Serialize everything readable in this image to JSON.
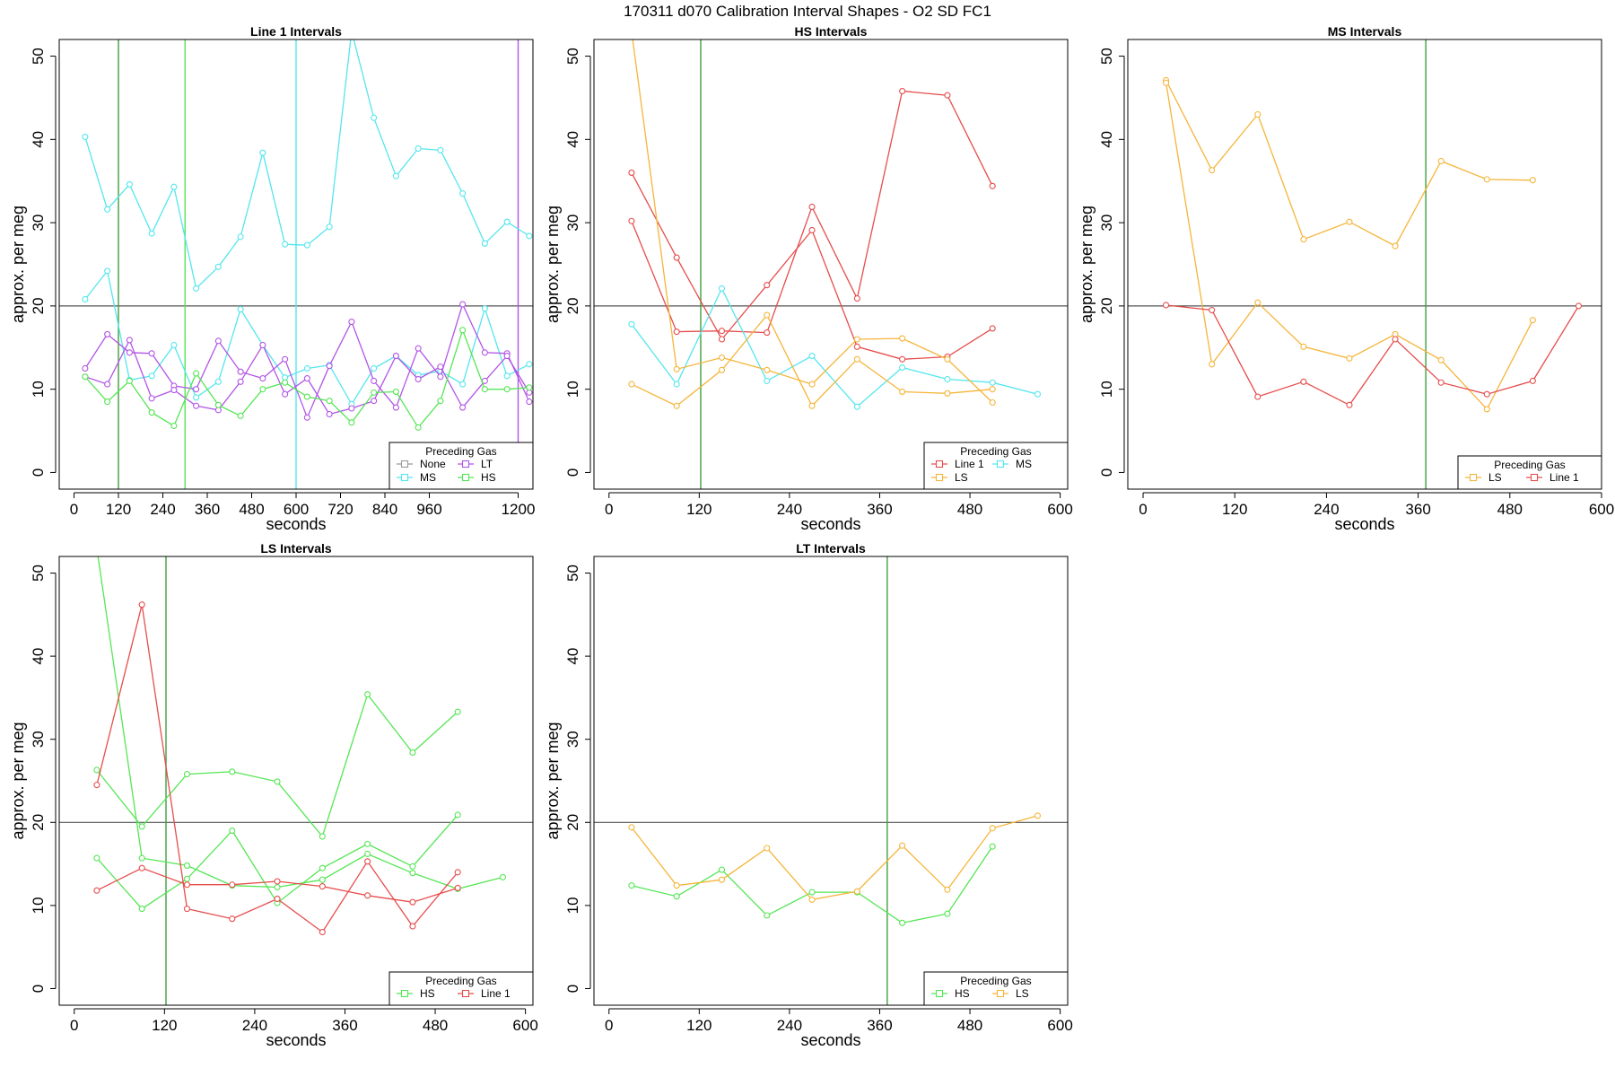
{
  "figure": {
    "supertitle": "170311    d070    Calibration Interval Shapes - O2 SD FC1",
    "colors": {
      "None": "#999999",
      "MS": "#55e6ee",
      "LT": "#b355e6",
      "HS": "#55e655",
      "Line 1": "#e64d4d",
      "LS": "#f5b53a",
      "ref": "#555555",
      "vline": "#3f9f3f"
    }
  },
  "chart_data": [
    {
      "type": "line",
      "title": "Line 1 Intervals",
      "xlabel": "seconds",
      "ylabel": "approx. per meg",
      "xlim": [
        -40,
        1240
      ],
      "ylim": [
        -2,
        52
      ],
      "xticks": [
        0,
        120,
        240,
        360,
        480,
        600,
        720,
        840,
        960,
        1200
      ],
      "yticks": [
        0,
        10,
        20,
        30,
        40,
        50
      ],
      "hline": 20,
      "vlines": [
        {
          "x": 120,
          "color": "#3f9f3f"
        },
        {
          "x": 300,
          "color": "#55e655"
        },
        {
          "x": 600,
          "color": "#55e6ee"
        },
        {
          "x": 1200,
          "color": "#b355e6"
        }
      ],
      "legend": {
        "title": "Preceding Gas",
        "position": "bottom-right",
        "columns": 2,
        "entries": [
          "None",
          "LT",
          "MS",
          "HS"
        ]
      },
      "series": [
        {
          "name": "MS",
          "x": [
            30,
            90,
            150,
            210,
            270,
            330,
            390,
            450,
            510,
            570,
            630,
            690,
            750,
            810,
            870,
            930,
            990,
            1050,
            1110,
            1170,
            1230
          ],
          "y": [
            40.3,
            31.6,
            34.6,
            28.7,
            34.3,
            22.1,
            24.7,
            28.3,
            38.4,
            27.4,
            27.3,
            29.5,
            53.0,
            42.6,
            35.6,
            38.9,
            38.7,
            33.5,
            27.5,
            30.1,
            28.4
          ]
        },
        {
          "name": "MS",
          "x": [
            30,
            90,
            150,
            210,
            270,
            330,
            390,
            450,
            510,
            570,
            630,
            690,
            750,
            810,
            870,
            930,
            990,
            1050,
            1110,
            1170,
            1230
          ],
          "y": [
            20.8,
            24.2,
            11.1,
            11.6,
            15.3,
            9.0,
            10.9,
            19.6,
            15.3,
            11.4,
            12.5,
            12.9,
            8.2,
            12.5,
            14.0,
            11.7,
            12.2,
            10.6,
            19.7,
            11.6,
            13.0
          ]
        },
        {
          "name": "LT",
          "x": [
            30,
            90,
            150,
            210,
            270,
            330,
            390,
            450,
            510,
            570,
            630,
            690,
            750,
            810,
            870,
            930,
            990,
            1050,
            1110,
            1170,
            1230
          ],
          "y": [
            12.5,
            16.6,
            14.4,
            14.3,
            10.4,
            10.0,
            15.8,
            12.1,
            11.3,
            13.6,
            6.6,
            12.8,
            18.1,
            11.0,
            7.8,
            14.9,
            11.5,
            20.2,
            14.4,
            14.3,
            8.5
          ]
        },
        {
          "name": "LT",
          "x": [
            30,
            90,
            150,
            210,
            270,
            330,
            390,
            450,
            510,
            570,
            630,
            690,
            750,
            810,
            870,
            930,
            990,
            1050,
            1110,
            1170,
            1230
          ],
          "y": [
            11.5,
            10.6,
            15.9,
            8.9,
            9.9,
            8.0,
            7.5,
            10.9,
            15.3,
            9.4,
            11.3,
            7.0,
            7.7,
            8.6,
            14.0,
            11.2,
            12.7,
            7.8,
            11.0,
            14.0,
            9.6
          ]
        },
        {
          "name": "HS",
          "x": [
            30,
            90,
            150,
            210,
            270,
            330,
            390,
            450,
            510,
            570,
            630,
            690,
            750,
            810,
            870,
            930,
            990,
            1050,
            1110,
            1170,
            1230
          ],
          "y": [
            11.5,
            8.5,
            11.0,
            7.2,
            5.6,
            11.9,
            8.1,
            6.8,
            10.0,
            10.8,
            9.1,
            8.6,
            6.0,
            9.6,
            9.7,
            5.4,
            8.6,
            17.1,
            10.0,
            10.0,
            10.2
          ]
        }
      ]
    },
    {
      "type": "line",
      "title": "HS Intervals",
      "xlabel": "seconds",
      "ylabel": "approx. per meg",
      "xlim": [
        -20,
        610
      ],
      "ylim": [
        -2,
        52
      ],
      "xticks": [
        0,
        120,
        240,
        360,
        480,
        600
      ],
      "yticks": [
        0,
        10,
        20,
        30,
        40,
        50
      ],
      "hline": 20,
      "vlines": [
        {
          "x": 122,
          "color": "#3f9f3f"
        }
      ],
      "legend": {
        "title": "Preceding Gas",
        "position": "bottom-right",
        "columns": 2,
        "entries": [
          "Line 1",
          "MS",
          "LS"
        ]
      },
      "series": [
        {
          "name": "Line 1",
          "x": [
            30,
            90,
            150,
            210,
            270,
            330,
            390,
            450,
            510
          ],
          "y": [
            36.0,
            25.8,
            16.0,
            22.5,
            29.1,
            15.1,
            13.6,
            13.9,
            17.3
          ]
        },
        {
          "name": "Line 1",
          "x": [
            30,
            90,
            150,
            210,
            270,
            330,
            390,
            450,
            510
          ],
          "y": [
            30.2,
            16.9,
            17.0,
            16.8,
            31.9,
            20.9,
            45.8,
            45.3,
            34.4
          ]
        },
        {
          "name": "MS",
          "x": [
            30,
            90,
            150,
            210,
            270,
            330,
            390,
            450,
            510,
            570
          ],
          "y": [
            17.8,
            10.6,
            22.1,
            11.0,
            14.0,
            7.9,
            12.6,
            11.2,
            10.8,
            9.4
          ]
        },
        {
          "name": "LS",
          "x": [
            30,
            90,
            150,
            210,
            270,
            330,
            390,
            450,
            510
          ],
          "y": [
            53.0,
            12.4,
            13.8,
            12.3,
            10.6,
            16.0,
            16.1,
            13.6,
            8.4
          ]
        },
        {
          "name": "LS",
          "x": [
            30,
            90,
            150,
            210,
            270,
            330,
            390,
            450,
            510
          ],
          "y": [
            10.6,
            8.0,
            12.3,
            18.9,
            8.0,
            13.6,
            9.7,
            9.5,
            10.0
          ]
        }
      ]
    },
    {
      "type": "line",
      "title": "MS Intervals",
      "xlabel": "seconds",
      "ylabel": "approx. per meg",
      "xlim": [
        -20,
        600
      ],
      "ylim": [
        -2,
        52
      ],
      "xticks": [
        0,
        120,
        240,
        360,
        480,
        600
      ],
      "yticks": [
        0,
        10,
        20,
        30,
        40,
        50
      ],
      "hline": 20,
      "vlines": [
        {
          "x": 370,
          "color": "#3f9f3f"
        }
      ],
      "legend": {
        "title": "Preceding Gas",
        "position": "bottom-right",
        "columns": 2,
        "entries": [
          "LS",
          "Line 1"
        ]
      },
      "series": [
        {
          "name": "LS",
          "x": [
            30,
            90,
            150,
            210,
            270,
            330,
            390,
            450,
            510
          ],
          "y": [
            47.1,
            36.3,
            43.0,
            28.0,
            30.1,
            27.2,
            37.4,
            35.2,
            35.1
          ]
        },
        {
          "name": "LS",
          "x": [
            30,
            90,
            150,
            210,
            270,
            330,
            390,
            450,
            510
          ],
          "y": [
            46.8,
            13.0,
            20.4,
            15.1,
            13.7,
            16.6,
            13.5,
            7.6,
            18.3
          ]
        },
        {
          "name": "Line 1",
          "x": [
            30,
            90,
            150,
            210,
            270,
            330,
            390,
            450,
            510,
            570
          ],
          "y": [
            20.1,
            19.5,
            9.1,
            10.9,
            8.1,
            16.0,
            10.8,
            9.4,
            11.0,
            20.0
          ]
        }
      ]
    },
    {
      "type": "line",
      "title": "LS Intervals",
      "xlabel": "seconds",
      "ylabel": "approx. per meg",
      "xlim": [
        -20,
        610
      ],
      "ylim": [
        -2,
        52
      ],
      "xticks": [
        0,
        120,
        240,
        360,
        480,
        600
      ],
      "yticks": [
        0,
        10,
        20,
        30,
        40,
        50
      ],
      "hline": 20,
      "vlines": [
        {
          "x": 122,
          "color": "#3f9f3f"
        }
      ],
      "legend": {
        "title": "Preceding Gas",
        "position": "bottom-right",
        "columns": 2,
        "entries": [
          "HS",
          "Line 1"
        ]
      },
      "series": [
        {
          "name": "HS",
          "x": [
            30,
            90,
            150,
            210,
            270,
            330,
            390,
            450,
            510
          ],
          "y": [
            26.3,
            19.5,
            25.8,
            26.1,
            24.9,
            18.3,
            35.4,
            28.4,
            33.3
          ]
        },
        {
          "name": "HS",
          "x": [
            30,
            90,
            150,
            210,
            270,
            330,
            390,
            450,
            510,
            570
          ],
          "y": [
            53.0,
            15.7,
            14.8,
            12.4,
            12.2,
            13.1,
            16.2,
            13.9,
            12.0,
            13.4
          ]
        },
        {
          "name": "HS",
          "x": [
            30,
            90,
            150,
            210,
            270,
            330,
            390,
            450,
            510
          ],
          "y": [
            15.7,
            9.6,
            13.2,
            19.0,
            10.3,
            14.5,
            17.4,
            14.7,
            20.9
          ]
        },
        {
          "name": "Line 1",
          "x": [
            30,
            90,
            150,
            210,
            270,
            330,
            390,
            450,
            510
          ],
          "y": [
            24.5,
            46.2,
            9.6,
            8.4,
            10.8,
            6.8,
            15.3,
            7.5,
            14.0
          ]
        },
        {
          "name": "Line 1",
          "x": [
            30,
            90,
            150,
            210,
            270,
            330,
            390,
            450,
            510
          ],
          "y": [
            11.8,
            14.5,
            12.5,
            12.5,
            12.9,
            12.3,
            11.2,
            10.4,
            12.1
          ]
        }
      ]
    },
    {
      "type": "line",
      "title": "LT Intervals",
      "xlabel": "seconds",
      "ylabel": "approx. per meg",
      "xlim": [
        -20,
        610
      ],
      "ylim": [
        -2,
        52
      ],
      "xticks": [
        0,
        120,
        240,
        360,
        480,
        600
      ],
      "yticks": [
        0,
        10,
        20,
        30,
        40,
        50
      ],
      "hline": 20,
      "vlines": [
        {
          "x": 370,
          "color": "#3f9f3f"
        }
      ],
      "legend": {
        "title": "Preceding Gas",
        "position": "bottom-right",
        "columns": 2,
        "entries": [
          "HS",
          "LS"
        ]
      },
      "series": [
        {
          "name": "HS",
          "x": [
            30,
            90,
            150,
            210,
            270,
            330,
            390,
            450,
            510
          ],
          "y": [
            12.4,
            11.1,
            14.3,
            8.8,
            11.6,
            11.6,
            7.9,
            9.0,
            17.1
          ]
        },
        {
          "name": "LS",
          "x": [
            30,
            90,
            150,
            210,
            270,
            330,
            390,
            450,
            510,
            570
          ],
          "y": [
            19.4,
            12.4,
            13.1,
            16.9,
            10.7,
            11.7,
            17.2,
            11.9,
            19.3,
            20.8
          ]
        }
      ]
    }
  ]
}
